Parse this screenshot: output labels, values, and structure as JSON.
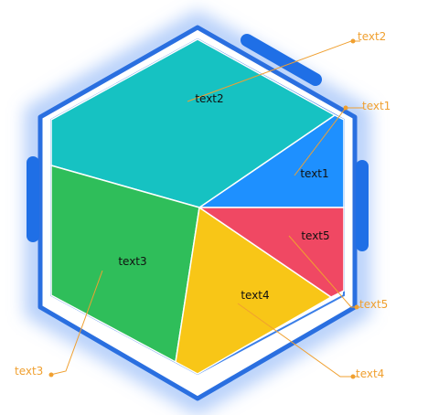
{
  "chart_data": {
    "type": "pie",
    "shape": "hexagon",
    "segments": [
      {
        "label": "text1",
        "callout": "text1",
        "color": "#1e90ff"
      },
      {
        "label": "text2",
        "callout": "text2",
        "color": "#16c2c2"
      },
      {
        "label": "text3",
        "callout": "text3",
        "color": "#2fbe5a"
      },
      {
        "label": "text4",
        "callout": "text4",
        "color": "#f8c617"
      },
      {
        "label": "text5",
        "callout": "text5",
        "color": "#f04863"
      }
    ],
    "frame_color": "#1f6fe6",
    "callout_color": "#f0a030"
  }
}
